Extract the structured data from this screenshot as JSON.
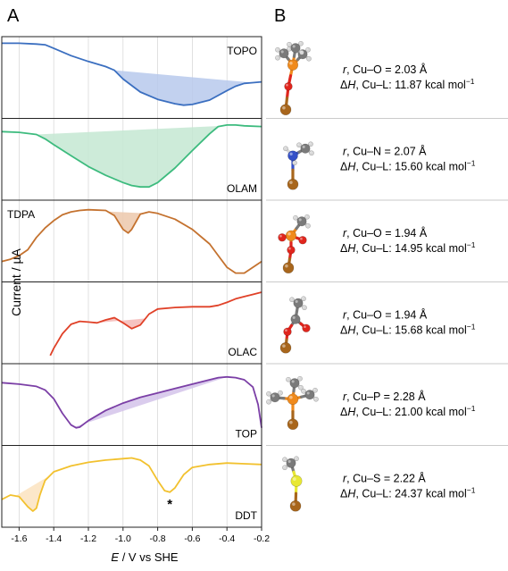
{
  "panel_labels": {
    "a": "A",
    "b": "B"
  },
  "axis": {
    "xlabel_italic": "E",
    "xlabel_rest": " / V vs SHE",
    "ylabel": "Current / µA",
    "ticks": [
      "-1.6",
      "-1.4",
      "-1.2",
      "-1.0",
      "-0.8",
      "-0.6",
      "-0.4",
      "-0.2"
    ]
  },
  "chart_data": {
    "type": "line",
    "xlabel": "E / V vs SHE",
    "ylabel": "Current / µA",
    "xlim": [
      -1.7,
      -0.2
    ],
    "xticks": [
      -1.6,
      -1.4,
      -1.2,
      -1.0,
      -0.8,
      -0.6,
      -0.4,
      -0.2
    ],
    "grid": "vertical",
    "note": "Current in arbitrary relative units (0-1), panels stacked vertically",
    "series": [
      {
        "name": "TOPO",
        "color": "#3b6fc0",
        "fill": "#b7c9ec",
        "label_pos": "top",
        "x": [
          -1.7,
          -1.6,
          -1.5,
          -1.45,
          -1.4,
          -1.3,
          -1.2,
          -1.1,
          -1.05,
          -1.0,
          -0.9,
          -0.8,
          -0.7,
          -0.65,
          -0.6,
          -0.5,
          -0.4,
          -0.35,
          -0.3,
          -0.25,
          -0.2
        ],
        "y": [
          0.97,
          0.97,
          0.96,
          0.95,
          0.9,
          0.8,
          0.72,
          0.65,
          0.6,
          0.48,
          0.3,
          0.2,
          0.14,
          0.12,
          0.13,
          0.19,
          0.32,
          0.38,
          0.42,
          0.43,
          0.44
        ],
        "shade": {
          "x1": -1.05,
          "x2": -0.25
        }
      },
      {
        "name": "OLAM",
        "color": "#3dbb7e",
        "fill": "#c4e8d2",
        "label_pos": "bottom",
        "x": [
          -1.7,
          -1.6,
          -1.5,
          -1.45,
          -1.4,
          -1.3,
          -1.2,
          -1.1,
          -1.0,
          -0.95,
          -0.9,
          -0.85,
          -0.8,
          -0.7,
          -0.6,
          -0.5,
          -0.45,
          -0.4,
          -0.35,
          -0.3,
          -0.2
        ],
        "y": [
          0.88,
          0.87,
          0.84,
          0.78,
          0.7,
          0.55,
          0.4,
          0.28,
          0.18,
          0.14,
          0.12,
          0.12,
          0.18,
          0.38,
          0.62,
          0.85,
          0.95,
          0.97,
          0.97,
          0.96,
          0.95
        ],
        "shade": {
          "x1": -1.5,
          "x2": -0.43
        }
      },
      {
        "name": "TDPA",
        "color": "#c4722f",
        "fill": "#ecc8ac",
        "label_pos": "top-left",
        "x": [
          -1.7,
          -1.65,
          -1.6,
          -1.55,
          -1.5,
          -1.45,
          -1.4,
          -1.35,
          -1.3,
          -1.25,
          -1.2,
          -1.1,
          -1.05,
          -1.0,
          -0.97,
          -0.95,
          -0.9,
          -0.85,
          -0.8,
          -0.7,
          -0.6,
          -0.5,
          -0.45,
          -0.4,
          -0.35,
          -0.3,
          -0.25,
          -0.2
        ],
        "y": [
          0.22,
          0.25,
          0.3,
          0.38,
          0.55,
          0.68,
          0.78,
          0.86,
          0.9,
          0.92,
          0.93,
          0.92,
          0.85,
          0.66,
          0.61,
          0.66,
          0.87,
          0.9,
          0.88,
          0.8,
          0.66,
          0.46,
          0.3,
          0.14,
          0.06,
          0.06,
          0.14,
          0.22
        ],
        "shade": {
          "x1": -1.09,
          "x2": -0.88
        }
      },
      {
        "name": "OLAC",
        "color": "#e04128",
        "fill": "#f4b8b6",
        "label_pos": "bottom",
        "x": [
          -1.42,
          -1.4,
          -1.35,
          -1.3,
          -1.25,
          -1.2,
          -1.15,
          -1.1,
          -1.05,
          -1.0,
          -0.95,
          -0.9,
          -0.85,
          -0.8,
          -0.7,
          -0.6,
          -0.5,
          -0.45,
          -0.4,
          -0.35,
          -0.3,
          -0.25,
          -0.2
        ],
        "y": [
          0.05,
          0.15,
          0.35,
          0.48,
          0.52,
          0.51,
          0.5,
          0.54,
          0.57,
          0.5,
          0.42,
          0.47,
          0.62,
          0.69,
          0.71,
          0.72,
          0.72,
          0.74,
          0.78,
          0.83,
          0.86,
          0.89,
          0.92
        ],
        "shade": {
          "x1": -1.15,
          "x2": -0.87
        }
      },
      {
        "name": "TOP",
        "color": "#7b3fa6",
        "fill": "#d4c3ea",
        "label_pos": "bottom",
        "x": [
          -1.7,
          -1.6,
          -1.5,
          -1.45,
          -1.4,
          -1.35,
          -1.3,
          -1.27,
          -1.25,
          -1.2,
          -1.1,
          -1.0,
          -0.9,
          -0.8,
          -0.7,
          -0.6,
          -0.5,
          -0.45,
          -0.4,
          -0.35,
          -0.3,
          -0.25,
          -0.22,
          -0.2
        ],
        "y": [
          0.8,
          0.78,
          0.75,
          0.7,
          0.58,
          0.38,
          0.22,
          0.18,
          0.19,
          0.28,
          0.42,
          0.52,
          0.6,
          0.66,
          0.72,
          0.78,
          0.84,
          0.87,
          0.88,
          0.87,
          0.84,
          0.74,
          0.5,
          0.18
        ],
        "shade": {
          "x1": -1.28,
          "x2": -0.4
        }
      },
      {
        "name": "DDT",
        "color": "#f2c12e",
        "fill": "#fbe3bf",
        "label_pos": "bottom",
        "x": [
          -1.7,
          -1.65,
          -1.6,
          -1.55,
          -1.52,
          -1.5,
          -1.48,
          -1.45,
          -1.4,
          -1.3,
          -1.2,
          -1.1,
          -1.0,
          -0.95,
          -0.9,
          -0.85,
          -0.8,
          -0.76,
          -0.73,
          -0.7,
          -0.65,
          -0.6,
          -0.5,
          -0.4,
          -0.3,
          -0.2
        ],
        "y": [
          0.32,
          0.38,
          0.36,
          0.22,
          0.16,
          0.2,
          0.38,
          0.58,
          0.7,
          0.78,
          0.83,
          0.86,
          0.88,
          0.89,
          0.86,
          0.78,
          0.58,
          0.44,
          0.42,
          0.48,
          0.66,
          0.76,
          0.8,
          0.82,
          0.81,
          0.8
        ],
        "shade": {
          "x1": -1.62,
          "x2": -1.42
        },
        "marker": {
          "x": -0.73,
          "text": "*"
        }
      }
    ]
  },
  "structures": [
    {
      "bond_r": "r",
      "bond_rest": ", Cu–O = 2.03 Å",
      "dh_d": "Δ",
      "dh_h": "H",
      "dh_rest": ", Cu–L: 11.87 kcal mol",
      "dh_sup": "−1",
      "molecule": "TOPO",
      "model": "topo"
    },
    {
      "bond_r": "r",
      "bond_rest": ", Cu–N = 2.07 Å",
      "dh_d": "Δ",
      "dh_h": "H",
      "dh_rest": ", Cu–L: 15.60 kcal mol",
      "dh_sup": "−1",
      "molecule": "OLAM",
      "model": "olam"
    },
    {
      "bond_r": "r",
      "bond_rest": ", Cu–O = 1.94 Å",
      "dh_d": "Δ",
      "dh_h": "H",
      "dh_rest": ", Cu–L: 14.95 kcal mol",
      "dh_sup": "−1",
      "molecule": "TDPA",
      "model": "tdpa"
    },
    {
      "bond_r": "r",
      "bond_rest": ", Cu–O = 1.94 Å",
      "dh_d": "Δ",
      "dh_h": "H",
      "dh_rest": ", Cu–L: 15.68 kcal mol",
      "dh_sup": "−1",
      "molecule": "OLAC",
      "model": "olac"
    },
    {
      "bond_r": "r",
      "bond_rest": ", Cu–P = 2.28 Å",
      "dh_d": "Δ",
      "dh_h": "H",
      "dh_rest": ", Cu–L: 21.00 kcal mol",
      "dh_sup": "−1",
      "molecule": "TOP",
      "model": "top"
    },
    {
      "bond_r": "r",
      "bond_rest": ", Cu–S = 2.22 Å",
      "dh_d": "Δ",
      "dh_h": "H",
      "dh_rest": ", Cu–L: 24.37 kcal mol",
      "dh_sup": "−1",
      "molecule": "DDT",
      "model": "ddt"
    }
  ],
  "atom_colors": {
    "C": "#7a7a7a",
    "H": "#d8d8d8",
    "O": "#e0251d",
    "N": "#3450c8",
    "P": "#f08a1c",
    "S": "#e8e834",
    "Cu": "#a8661c"
  }
}
